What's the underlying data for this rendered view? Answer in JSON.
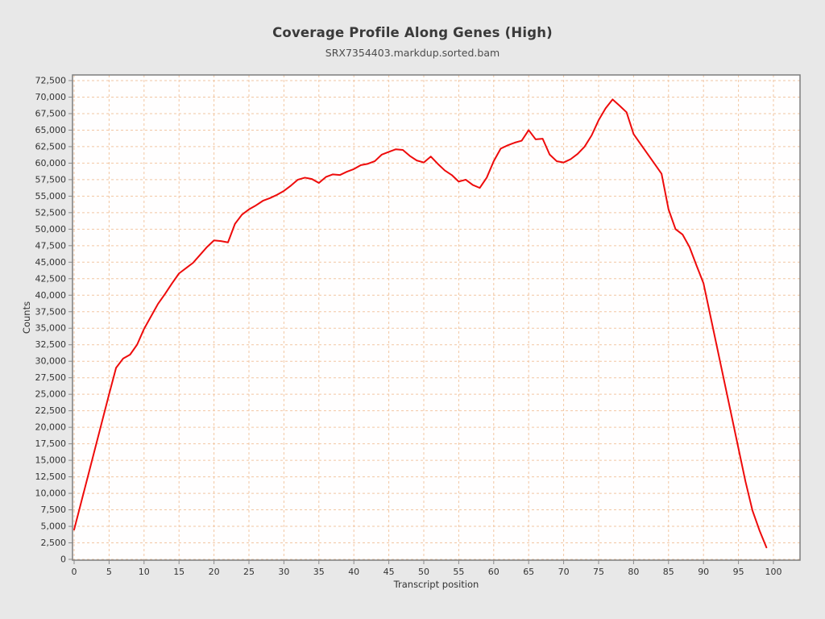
{
  "header": {
    "title": "Coverage Profile Along Genes (High)",
    "subtitle": "SRX7354403.markdup.sorted.bam"
  },
  "colors": {
    "background": "#e8e8e8",
    "plot_background": "#fffefe",
    "grid": "#f2c6a2",
    "line": "#ee0b0b",
    "border": "#7d7d7d",
    "tick": "#8a8a8a",
    "tick_text": "#333333"
  },
  "chart_data": {
    "type": "line",
    "title": "Coverage Profile Along Genes (High)",
    "subtitle": "SRX7354403.markdup.sorted.bam",
    "xlabel": "Transcript position",
    "ylabel": "Counts",
    "legend": "none",
    "grid": "dashed",
    "xlim": [
      0,
      103.8
    ],
    "ylim": [
      0,
      73350
    ],
    "x_ticks": [
      0,
      5,
      10,
      15,
      20,
      25,
      30,
      35,
      40,
      45,
      50,
      55,
      60,
      65,
      70,
      75,
      80,
      85,
      90,
      95,
      100
    ],
    "y_ticks": [
      0,
      2500,
      5000,
      7500,
      10000,
      12500,
      15000,
      17500,
      20000,
      22500,
      25000,
      27500,
      30000,
      32500,
      35000,
      37500,
      40000,
      42500,
      45000,
      47500,
      50000,
      52500,
      55000,
      57500,
      60000,
      62500,
      65000,
      67500,
      70000,
      72500
    ],
    "series": [
      {
        "name": "coverage",
        "color": "#ee0b0b",
        "x_start": 0,
        "x_step": 1,
        "values": [
          4500,
          8600,
          12700,
          16800,
          20900,
          25000,
          29000,
          30400,
          31000,
          32500,
          34900,
          36800,
          38700,
          40200,
          41800,
          43300,
          44100,
          44900,
          46100,
          47300,
          48300,
          48200,
          48000,
          50800,
          52200,
          53000,
          53600,
          54300,
          54700,
          55200,
          55800,
          56600,
          57500,
          57800,
          57600,
          57000,
          57900,
          58300,
          58200,
          58700,
          59100,
          59700,
          59900,
          60300,
          61300,
          61700,
          62100,
          62000,
          61100,
          60400,
          60100,
          61000,
          59900,
          58900,
          58200,
          57200,
          57500,
          56700,
          56250,
          57800,
          60300,
          62200,
          62700,
          63100,
          63400,
          65000,
          63600,
          63700,
          61300,
          60300,
          60100,
          60600,
          61400,
          62500,
          64200,
          66500,
          68300,
          69650,
          68700,
          67700,
          64400,
          62900,
          61400,
          59900,
          58400,
          53000,
          50000,
          49200,
          47300,
          44500,
          41800,
          36800,
          31800,
          26800,
          21800,
          16800,
          11800,
          7400,
          4400,
          1800
        ]
      }
    ]
  }
}
